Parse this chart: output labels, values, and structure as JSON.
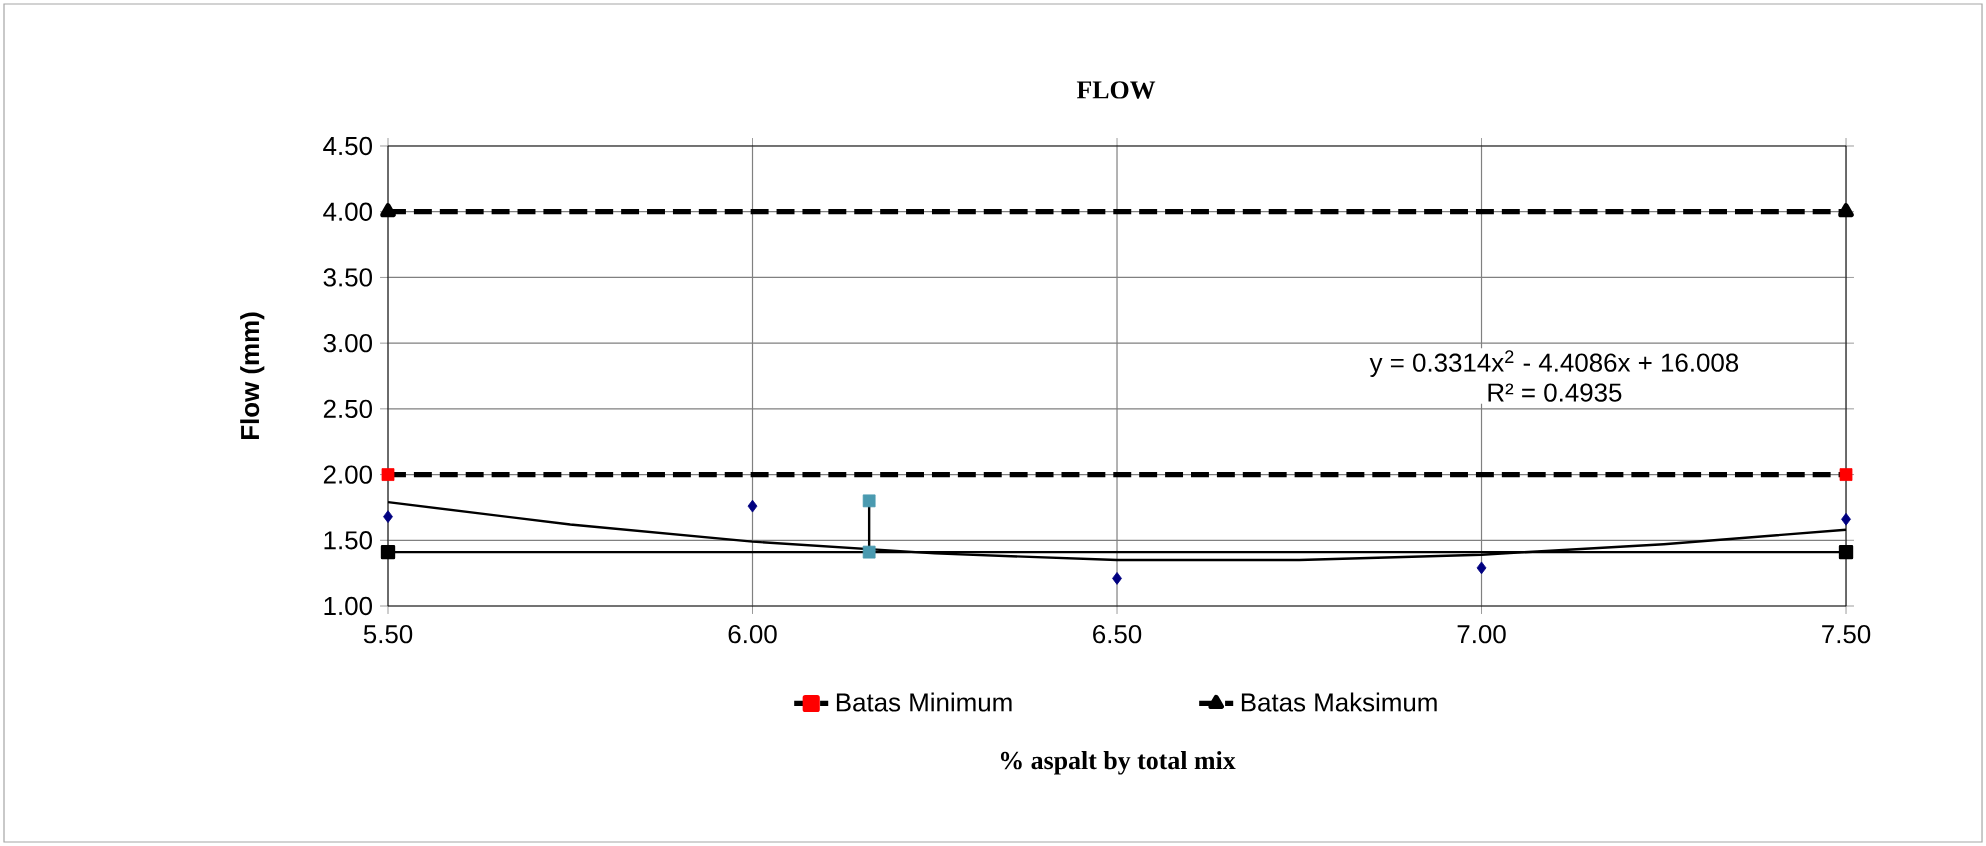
{
  "chart_data": {
    "type": "line",
    "title": "FLOW",
    "xlabel": "% aspalt by total mix",
    "ylabel": "Flow (mm)",
    "xlim": [
      5.5,
      7.5
    ],
    "xticks": [
      {
        "value": 5.5,
        "label": "5.50"
      },
      {
        "value": 6.0,
        "label": "6.00"
      },
      {
        "value": 6.5,
        "label": "6.50"
      },
      {
        "value": 7.0,
        "label": "7.00"
      },
      {
        "value": 7.5,
        "label": "7.50"
      }
    ],
    "ylim": [
      1.0,
      4.5
    ],
    "yticks": [
      {
        "value": 1.0,
        "label": "1.00"
      },
      {
        "value": 1.5,
        "label": "1.50"
      },
      {
        "value": 2.0,
        "label": "2.00"
      },
      {
        "value": 2.5,
        "label": "2.50"
      },
      {
        "value": 3.0,
        "label": "3.00"
      },
      {
        "value": 3.5,
        "label": "3.50"
      },
      {
        "value": 4.0,
        "label": "4.00"
      },
      {
        "value": 4.5,
        "label": "4.50"
      }
    ],
    "grid": true,
    "legend": "bottom",
    "annotations": [
      "y = 0.3314x$^{2}$ - 4.4086x + 16.008",
      "R² = 0.4935"
    ],
    "series": [
      {
        "type": "scatter",
        "marker": "diamond",
        "color": "#000080",
        "x": [
          5.5,
          6.0,
          6.5,
          7.0,
          7.5
        ],
        "values": [
          1.68,
          1.76,
          1.21,
          1.29,
          1.66
        ]
      },
      {
        "marker": "none",
        "line_style": "solid",
        "color": "#000000",
        "x": [
          5.5,
          5.75,
          6.0,
          6.25,
          6.5,
          6.75,
          7.0,
          7.25,
          7.5
        ],
        "values": [
          1.79,
          1.62,
          1.49,
          1.4,
          1.35,
          1.35,
          1.39,
          1.47,
          1.58
        ]
      },
      {
        "marker": "square",
        "line_style": "solid",
        "color": "#000000",
        "x": [
          5.5,
          7.5
        ],
        "values": [
          1.41,
          1.41
        ]
      },
      {
        "marker": "square",
        "line_style": "solid",
        "color": "#000000",
        "colors": [
          "#4a9ab0",
          "#4a9ab0"
        ],
        "x": [
          6.16,
          6.16
        ],
        "values": [
          1.41,
          1.8
        ]
      },
      {
        "name": "Batas Minimum",
        "marker": "square",
        "line_style": "dashed",
        "color": "#000000",
        "colors": [
          "#ff0000",
          "#ff0000"
        ],
        "x": [
          5.5,
          7.5
        ],
        "values": [
          2.0,
          2.0
        ]
      },
      {
        "name": "Batas Maksimum",
        "marker": "triangle",
        "line_style": "dashed",
        "color": "#000000",
        "x": [
          5.5,
          7.5
        ],
        "values": [
          4.0,
          4.0
        ]
      }
    ]
  }
}
